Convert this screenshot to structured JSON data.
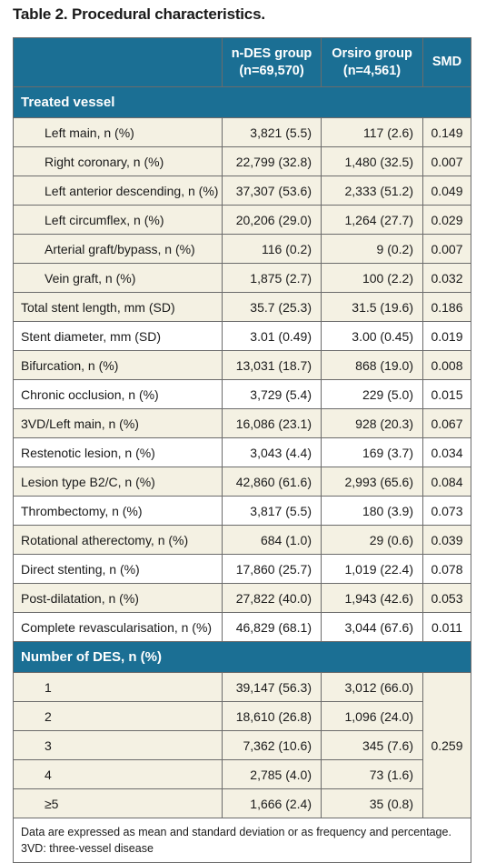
{
  "title": "Table 2. Procedural characteristics.",
  "headers": {
    "ndes": [
      "n-DES group",
      "(n=69,570)"
    ],
    "orsiro": [
      "Orsiro group",
      "(n=4,561)"
    ],
    "smd": "SMD"
  },
  "sections": {
    "treated_vessel": "Treated vessel",
    "number_des": "Number of DES, n (%)"
  },
  "vessel_rows": [
    {
      "label": "Left main, n (%)",
      "ndes": "3,821 (5.5)",
      "orsiro": "117 (2.6)",
      "smd": "0.149"
    },
    {
      "label": "Right coronary, n (%)",
      "ndes": "22,799 (32.8)",
      "orsiro": "1,480 (32.5)",
      "smd": "0.007"
    },
    {
      "label": "Left anterior descending, n (%)",
      "ndes": "37,307 (53.6)",
      "orsiro": "2,333 (51.2)",
      "smd": "0.049"
    },
    {
      "label": "Left circumflex, n (%)",
      "ndes": "20,206 (29.0)",
      "orsiro": "1,264 (27.7)",
      "smd": "0.029"
    },
    {
      "label": "Arterial graft/bypass, n (%)",
      "ndes": "116 (0.2)",
      "orsiro": "9 (0.2)",
      "smd": "0.007"
    },
    {
      "label": "Vein graft, n (%)",
      "ndes": "1,875 (2.7)",
      "orsiro": "100 (2.2)",
      "smd": "0.032"
    }
  ],
  "main_rows": [
    {
      "label": "Total stent length, mm (SD)",
      "ndes": "35.7 (25.3)",
      "orsiro": "31.5 (19.6)",
      "smd": "0.186"
    },
    {
      "label": "Stent diameter, mm (SD)",
      "ndes": "3.01 (0.49)",
      "orsiro": "3.00 (0.45)",
      "smd": "0.019"
    },
    {
      "label": "Bifurcation, n (%)",
      "ndes": "13,031 (18.7)",
      "orsiro": "868 (19.0)",
      "smd": "0.008"
    },
    {
      "label": "Chronic occlusion, n (%)",
      "ndes": "3,729 (5.4)",
      "orsiro": "229 (5.0)",
      "smd": "0.015"
    },
    {
      "label": "3VD/Left main, n (%)",
      "ndes": "16,086 (23.1)",
      "orsiro": "928 (20.3)",
      "smd": "0.067"
    },
    {
      "label": "Restenotic lesion, n (%)",
      "ndes": "3,043 (4.4)",
      "orsiro": "169 (3.7)",
      "smd": "0.034"
    },
    {
      "label": "Lesion type B2/C, n (%)",
      "ndes": "42,860 (61.6)",
      "orsiro": "2,993 (65.6)",
      "smd": "0.084"
    },
    {
      "label": "Thrombectomy, n (%)",
      "ndes": "3,817 (5.5)",
      "orsiro": "180 (3.9)",
      "smd": "0.073"
    },
    {
      "label": "Rotational atherectomy, n (%)",
      "ndes": "684 (1.0)",
      "orsiro": "29 (0.6)",
      "smd": "0.039"
    },
    {
      "label": "Direct stenting, n (%)",
      "ndes": "17,860 (25.7)",
      "orsiro": "1,019 (22.4)",
      "smd": "0.078"
    },
    {
      "label": "Post-dilatation, n (%)",
      "ndes": "27,822 (40.0)",
      "orsiro": "1,943 (42.6)",
      "smd": "0.053"
    },
    {
      "label": "Complete revascularisation, n (%)",
      "ndes": "46,829 (68.1)",
      "orsiro": "3,044 (67.6)",
      "smd": "0.011"
    }
  ],
  "des_rows": [
    {
      "label": "1",
      "ndes": "39,147 (56.3)",
      "orsiro": "3,012 (66.0)"
    },
    {
      "label": "2",
      "ndes": "18,610 (26.8)",
      "orsiro": "1,096 (24.0)"
    },
    {
      "label": "3",
      "ndes": "7,362 (10.6)",
      "orsiro": "345 (7.6)"
    },
    {
      "label": "4",
      "ndes": "2,785 (4.0)",
      "orsiro": "73 (1.6)"
    },
    {
      "label": "≥5",
      "ndes": "1,666 (2.4)",
      "orsiro": "35 (0.8)"
    }
  ],
  "des_smd": "0.259",
  "footnote": [
    "Data are expressed as mean and standard deviation or as frequency and percentage.",
    "3VD: three-vessel disease"
  ],
  "colors": {
    "header": "#1b6f94",
    "beige": "#f4f1e3",
    "border": "#6b6b6b"
  }
}
